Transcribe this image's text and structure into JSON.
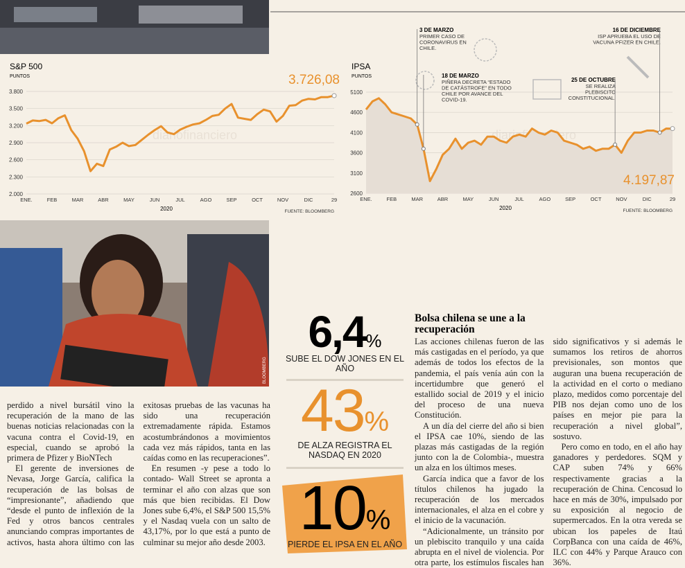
{
  "chart_data": [
    {
      "type": "line",
      "title": "S&P 500",
      "unit": "PUNTOS",
      "year": "2020",
      "source": "FUENTE: BLOOMBERG",
      "end_label": "3.726,08",
      "watermark": "diariofinanciero",
      "area": false,
      "grid": true,
      "categories": [
        "ENE.",
        null,
        null,
        null,
        "FEB",
        null,
        null,
        null,
        "MAR",
        null,
        null,
        null,
        "ABR",
        null,
        null,
        null,
        "MAY",
        null,
        null,
        null,
        "JUN",
        null,
        null,
        null,
        "JUL",
        null,
        null,
        null,
        "AGO",
        null,
        null,
        null,
        "SEP",
        null,
        null,
        null,
        "OCT",
        null,
        null,
        null,
        "NOV",
        null,
        null,
        null,
        "DIC",
        null,
        null,
        null,
        "29"
      ],
      "series": [
        {
          "name": "S&P 500",
          "color": "#e8912d",
          "values": [
            3235,
            3290,
            3280,
            3300,
            3240,
            3330,
            3380,
            3120,
            2970,
            2750,
            2400,
            2530,
            2490,
            2780,
            2830,
            2900,
            2840,
            2860,
            2950,
            3040,
            3120,
            3190,
            3080,
            3050,
            3130,
            3180,
            3220,
            3240,
            3300,
            3370,
            3390,
            3500,
            3580,
            3340,
            3320,
            3300,
            3400,
            3480,
            3450,
            3270,
            3370,
            3550,
            3560,
            3640,
            3670,
            3660,
            3700,
            3700,
            3726.08
          ]
        }
      ],
      "ylim": [
        2000,
        3800
      ],
      "yticks": [
        {
          "value": 2000,
          "label": "2.000"
        },
        {
          "value": 2300,
          "label": "2.300"
        },
        {
          "value": 2600,
          "label": "2.600"
        },
        {
          "value": 2900,
          "label": "2.900"
        },
        {
          "value": 3200,
          "label": "3.200"
        },
        {
          "value": 3500,
          "label": "3.500"
        },
        {
          "value": 3800,
          "label": "3.800"
        }
      ]
    },
    {
      "type": "line",
      "title": "IPSA",
      "unit": "PUNTOS",
      "year": "2020",
      "source": "FUENTE: BLOOMBERG",
      "end_label": "4.197,87",
      "watermark": "diariofinanciero",
      "area": true,
      "grid": true,
      "categories": [
        "ENE.",
        null,
        null,
        null,
        "FEB",
        null,
        null,
        null,
        "MAR",
        null,
        null,
        null,
        "ABR",
        null,
        null,
        null,
        "MAY",
        null,
        null,
        null,
        "JUN",
        null,
        null,
        null,
        "JUL",
        null,
        null,
        null,
        "AGO",
        null,
        null,
        null,
        "SEP",
        null,
        null,
        null,
        "OCT",
        null,
        null,
        null,
        "NOV",
        null,
        null,
        null,
        "DIC",
        null,
        null,
        null,
        "29"
      ],
      "series": [
        {
          "name": "IPSA",
          "color": "#e8912d",
          "values": [
            4670,
            4870,
            4950,
            4800,
            4600,
            4550,
            4500,
            4450,
            4300,
            3700,
            2900,
            3200,
            3550,
            3700,
            3950,
            3700,
            3850,
            3900,
            3800,
            4000,
            4000,
            3900,
            3850,
            4000,
            4050,
            4000,
            4200,
            4100,
            4050,
            4150,
            4100,
            3900,
            3850,
            3800,
            3700,
            3750,
            3650,
            3700,
            3700,
            3800,
            3600,
            3900,
            4100,
            4100,
            4150,
            4150,
            4100,
            4200,
            4197.87
          ]
        }
      ],
      "ylim": [
        2600,
        5100
      ],
      "yticks": [
        2600,
        3100,
        3600,
        4100,
        4600,
        5100
      ],
      "annotations": [
        {
          "date": "3 DE MARZO",
          "text": [
            "PRIMER CASO DE",
            "CORONAVIRUS EN",
            "CHILE."
          ]
        },
        {
          "date": "18 DE MARZO",
          "text": [
            "PIÑERA DECRETA “ESTADO",
            "DE CATÁSTROFE” EN TODO",
            "CHILE POR AVANCE DEL",
            "COVID-19."
          ]
        },
        {
          "date": "25 DE OCTUBRE",
          "text": [
            "SE REALIZA",
            "PLEBISCITO",
            "CONSTITUCIONAL."
          ]
        },
        {
          "date": "16 DE DICIEMBRE",
          "text": [
            "ISP APRUEBA EL USO DE",
            "VACUNA PFIZER EN CHILE."
          ]
        }
      ]
    }
  ],
  "photo_credit": "BLOOMBERG",
  "left_text": [
    "perdido a nivel bursátil vino la recuperación de la mano de las buenas noticias relacionadas con la vacuna contra el Covid-19, en especial, cuando se aprobó la primera de Pfizer y BioNTech",
    "El gerente de inversiones de Nevasa, Jorge García, califica la recuperación de las bolsas de “impresionante”, añadiendo que “desde el punto de inflexión de la Fed y otros bancos centrales anunciando compras importantes de activos, hasta ahora último con las exitosas pruebas de las vacunas ha sido una recuperación extremadamente rápida. Estamos acostumbrándonos a movimientos cada vez más rápidos, tanta en las caídas como en las recuperaciones”.",
    "En resumen -y pese a todo lo contado- Wall Street se apronta a terminar el año con alzas que son más que bien recibidas. El Dow Jones sube 6,4%, el S&P 500 15,5% y el Nasdaq vuela con un salto de 43,17%, por lo que está a punto de culminar su mejor año desde 2003."
  ],
  "stats": [
    {
      "figure": "6,4",
      "unit": "%",
      "caption": "SUBE EL DOW JONES EN EL AÑO"
    },
    {
      "figure": "43",
      "unit": "%",
      "caption": "DE ALZA REGISTRA EL NASDAQ EN 2020"
    },
    {
      "figure": "10",
      "unit": "%",
      "caption": "PIERDE EL IPSA EN EL AÑO"
    }
  ],
  "article": {
    "title": "Bolsa chilena se une a la recuperación",
    "paragraphs": [
      "Las acciones chilenas fueron de las más castigadas en el período, ya que además de todos los efectos de la pandemia, el país venía aún con la incertidumbre que generó el estallido social de 2019 y el inicio del proceso de una nueva Constitución.",
      "A un día del cierre del año si bien el IPSA cae 10%, siendo de las plazas más castigadas de la región junto con la de Colombia-, muestra un alza en los últimos meses.",
      "García indica que a favor de los títulos chilenos ha jugado la recuperación de los mercados internacionales, el alza en el cobre y el inicio de la vacunación.",
      "“Adicionalmente, un tránsito por un plebiscito tranquilo y una caída abrupta en el nivel de violencia. Por otra parte, los estímulos fiscales han sido significativos y si además le sumamos los retiros de ahorros previsionales, son montos que auguran una buena recuperación de la actividad en el corto o mediano plazo, medidos como porcentaje del PIB nos dejan como uno de los países en mejor pie para la recuperación a nivel global”, sostuvo.",
      "Pero como en todo, en el año hay ganadores y perdedores. SQM y CAP suben 74% y 66% respectivamente gracias a la recuperación de China. Cencosud lo hace en más de 30%, impulsado por su exposición al negocio de supermercados. En la otra vereda se ubican los papeles de Itaú CorpBanca con una caída de 46%, ILC con 44% y Parque Arauco con 36%."
    ]
  }
}
